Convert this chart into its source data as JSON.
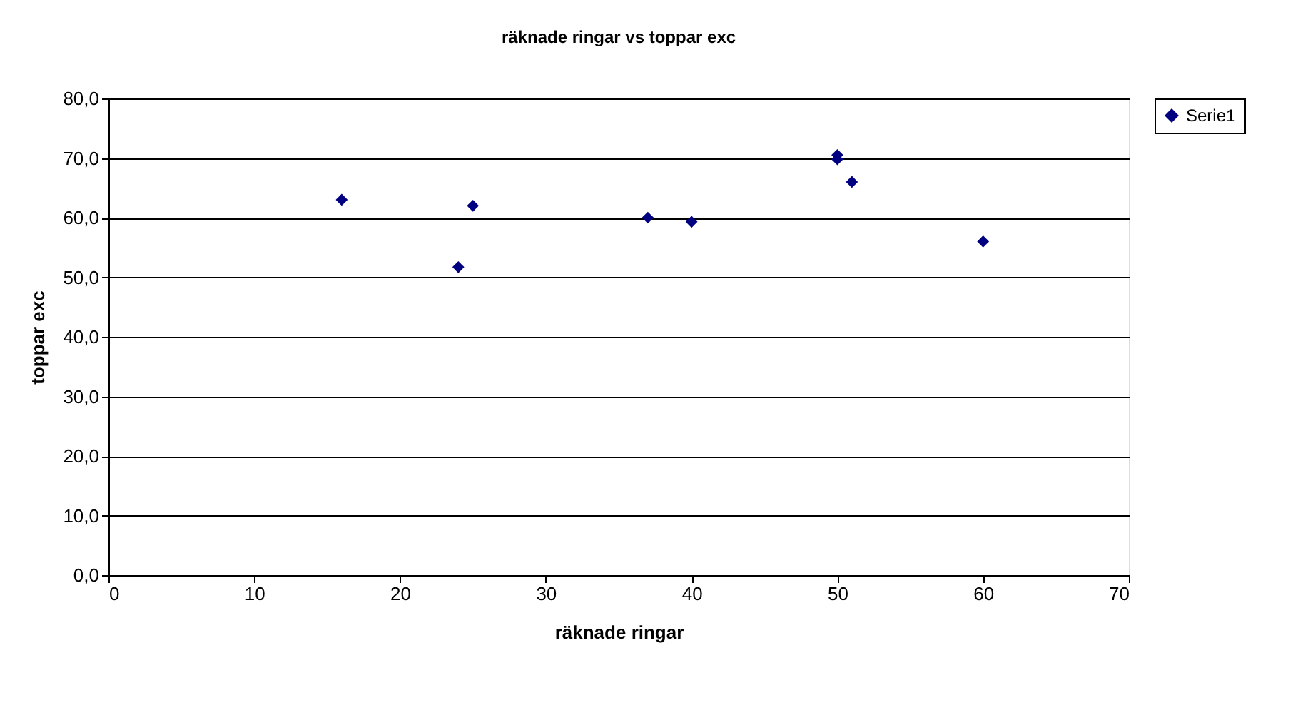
{
  "chart_data": {
    "type": "scatter",
    "title": "räknade ringar vs toppar exc",
    "xlabel": "räknade ringar",
    "ylabel": "toppar exc",
    "x": [
      16,
      24,
      25,
      37,
      40,
      50,
      50,
      51,
      60
    ],
    "series": [
      {
        "name": "Serie1",
        "color": "#000080",
        "values": [
          63,
          51.7,
          62,
          60,
          59.3,
          70.5,
          69.8,
          66,
          56
        ]
      }
    ],
    "xlim": [
      0,
      70
    ],
    "xticks": [
      0,
      10,
      20,
      30,
      40,
      50,
      60,
      70
    ],
    "ylim": [
      0,
      80
    ],
    "yticks": [
      {
        "value": 0,
        "label": "0,0"
      },
      {
        "value": 10,
        "label": "10,0"
      },
      {
        "value": 20,
        "label": "20,0"
      },
      {
        "value": 30,
        "label": "30,0"
      },
      {
        "value": 40,
        "label": "40,0"
      },
      {
        "value": 50,
        "label": "50,0"
      },
      {
        "value": 60,
        "label": "60,0"
      },
      {
        "value": 70,
        "label": "70,0"
      },
      {
        "value": 80,
        "label": "80,0"
      }
    ],
    "grid": "y",
    "legend": "right",
    "marker": "diamond"
  }
}
